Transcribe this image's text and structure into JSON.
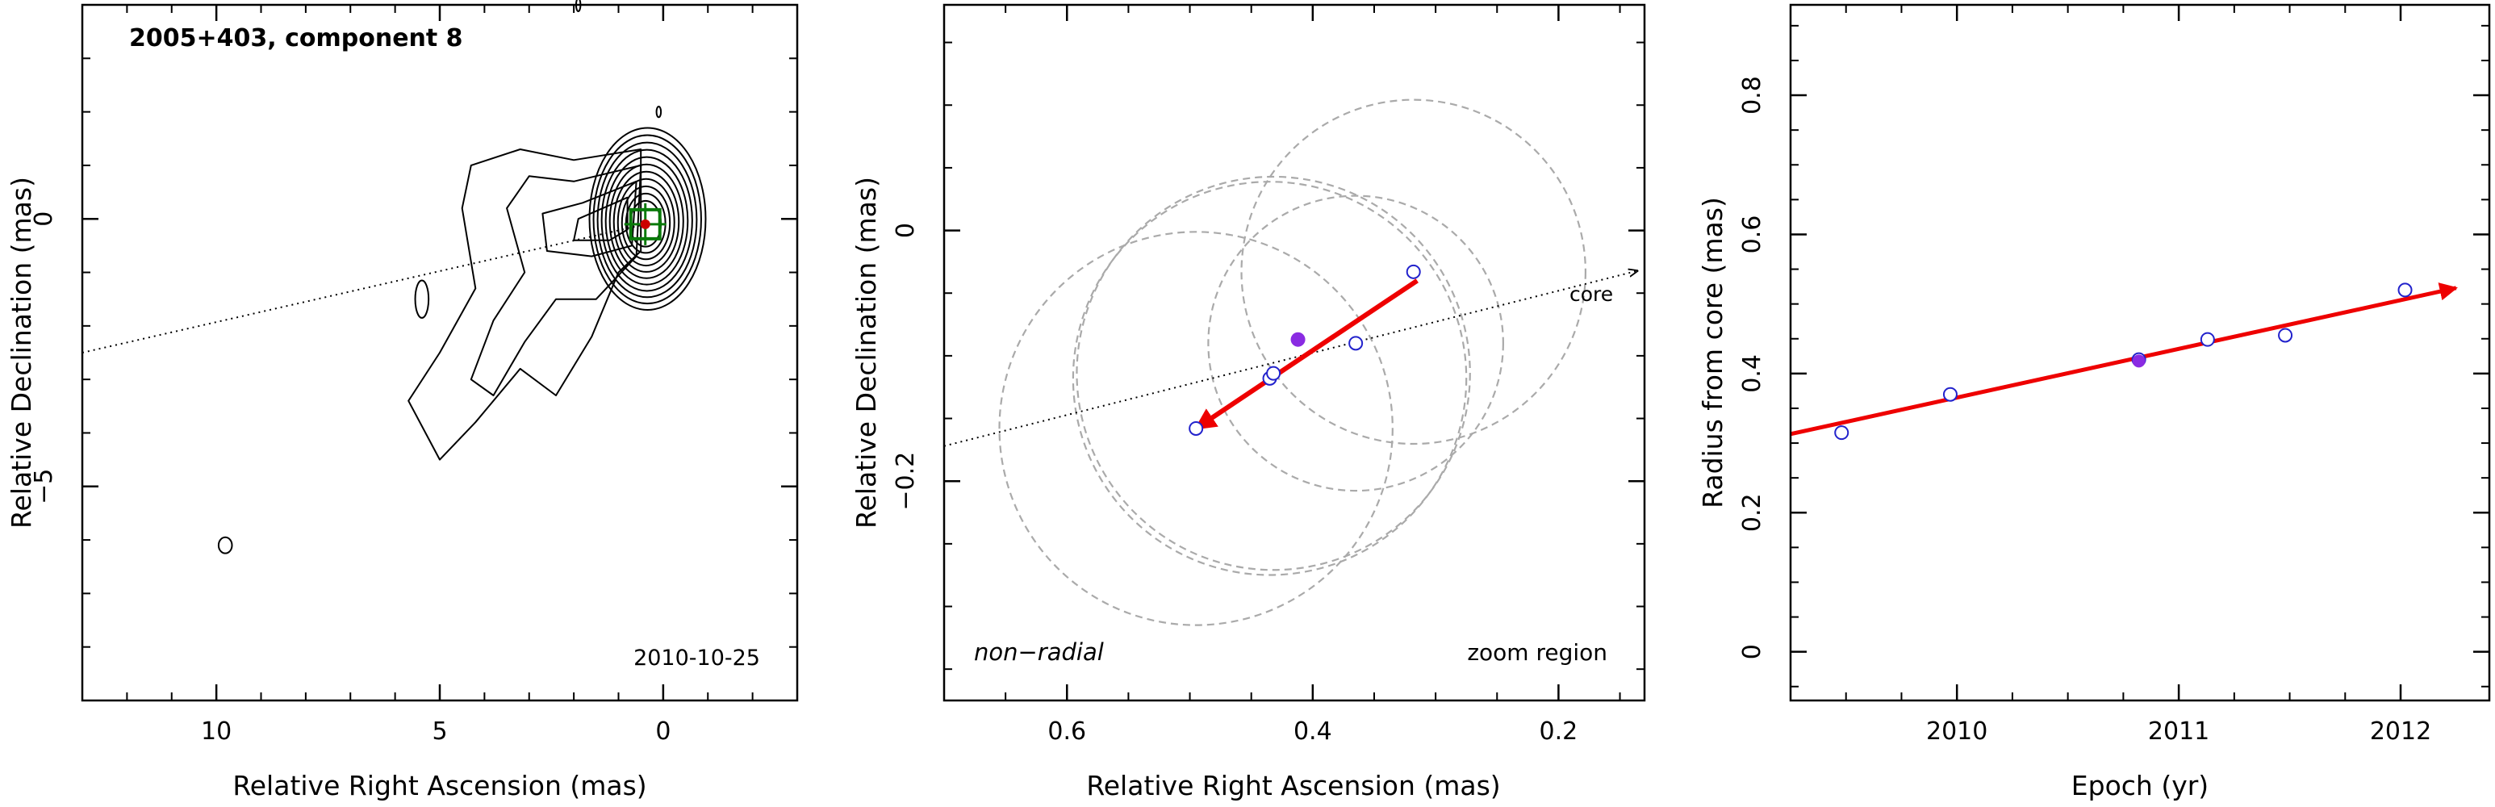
{
  "chart_data": [
    {
      "type": "contour",
      "title": "2005+403, component 8",
      "epoch_label": "2010-10-25",
      "xlabel": "Relative Right Ascension (mas)",
      "ylabel": "Relative Declination (mas)",
      "xlim": [
        13.0,
        -3.0
      ],
      "ylim": [
        -9.0,
        4.0
      ],
      "xticks": [
        10,
        5,
        0
      ],
      "yticks": [
        0,
        -5
      ],
      "component_position": [
        0.4,
        -0.1
      ],
      "direction_line": {
        "from": [
          13.0,
          -2.5
        ],
        "to": [
          0.4,
          -0.1
        ],
        "style": "dotted"
      },
      "contour_levels": 11,
      "colors": {
        "contours": "#000000",
        "component_box": "#0a7a0a",
        "component_marker": "#cc0000"
      }
    },
    {
      "type": "scatter",
      "xlabel": "Relative Right Ascension (mas)",
      "ylabel": "Relative Declination (mas)",
      "xlim": [
        0.7,
        0.13
      ],
      "ylim": [
        -0.375,
        0.18
      ],
      "xticks": [
        0.6,
        0.4,
        0.2
      ],
      "xtick_labels": [
        "0.6",
        "0.4",
        "0.2"
      ],
      "yticks": [
        0,
        -0.2
      ],
      "ytick_labels": [
        "0",
        "−0.2"
      ],
      "annotations": {
        "left": "non−radial",
        "right": "zoom region",
        "core": "core"
      },
      "points": [
        {
          "x": 0.495,
          "y": -0.158
        },
        {
          "x": 0.435,
          "y": -0.118
        },
        {
          "x": 0.432,
          "y": -0.114
        },
        {
          "x": 0.365,
          "y": -0.09
        },
        {
          "x": 0.318,
          "y": -0.033
        }
      ],
      "highlight_point": {
        "x": 0.412,
        "y": -0.087
      },
      "error_circles": [
        {
          "x": 0.495,
          "y": -0.158,
          "r": 0.16
        },
        {
          "x": 0.435,
          "y": -0.118,
          "r": 0.16
        },
        {
          "x": 0.432,
          "y": -0.114,
          "r": 0.16
        },
        {
          "x": 0.365,
          "y": -0.09,
          "r": 0.12
        },
        {
          "x": 0.318,
          "y": -0.033,
          "r": 0.14
        }
      ],
      "trend_arrow": {
        "from": [
          0.315,
          -0.04
        ],
        "to": [
          0.495,
          -0.158
        ]
      },
      "core_direction": {
        "from": [
          0.7,
          -0.172
        ],
        "to": [
          0.135,
          -0.032
        ],
        "style": "dotted"
      },
      "colors": {
        "points": "#2222cc",
        "highlight": "#8a2be2",
        "arrow": "#ee0000",
        "circles": "#aaaaaa"
      }
    },
    {
      "type": "scatter",
      "xlabel": "Epoch (yr)",
      "ylabel": "Radius from core (mas)",
      "xlim": [
        2009.25,
        2012.4
      ],
      "ylim": [
        -0.07,
        0.93
      ],
      "xticks": [
        2010,
        2011,
        2012
      ],
      "yticks": [
        0,
        0.2,
        0.4,
        0.6,
        0.8
      ],
      "ytick_labels": [
        "0",
        "0.2",
        "0.4",
        "0.6",
        "0.8"
      ],
      "points": [
        {
          "x": 2009.48,
          "y": 0.315
        },
        {
          "x": 2009.97,
          "y": 0.37
        },
        {
          "x": 2010.82,
          "y": 0.42
        },
        {
          "x": 2011.13,
          "y": 0.449
        },
        {
          "x": 2011.48,
          "y": 0.455
        },
        {
          "x": 2012.02,
          "y": 0.52
        }
      ],
      "highlight_point": {
        "x": 2010.82,
        "y": 0.418
      },
      "fit_line": {
        "from": [
          2009.25,
          0.313
        ],
        "to": [
          2012.25,
          0.523
        ]
      },
      "colors": {
        "points": "#2222cc",
        "highlight": "#8a2be2",
        "fit": "#ee0000"
      }
    }
  ]
}
